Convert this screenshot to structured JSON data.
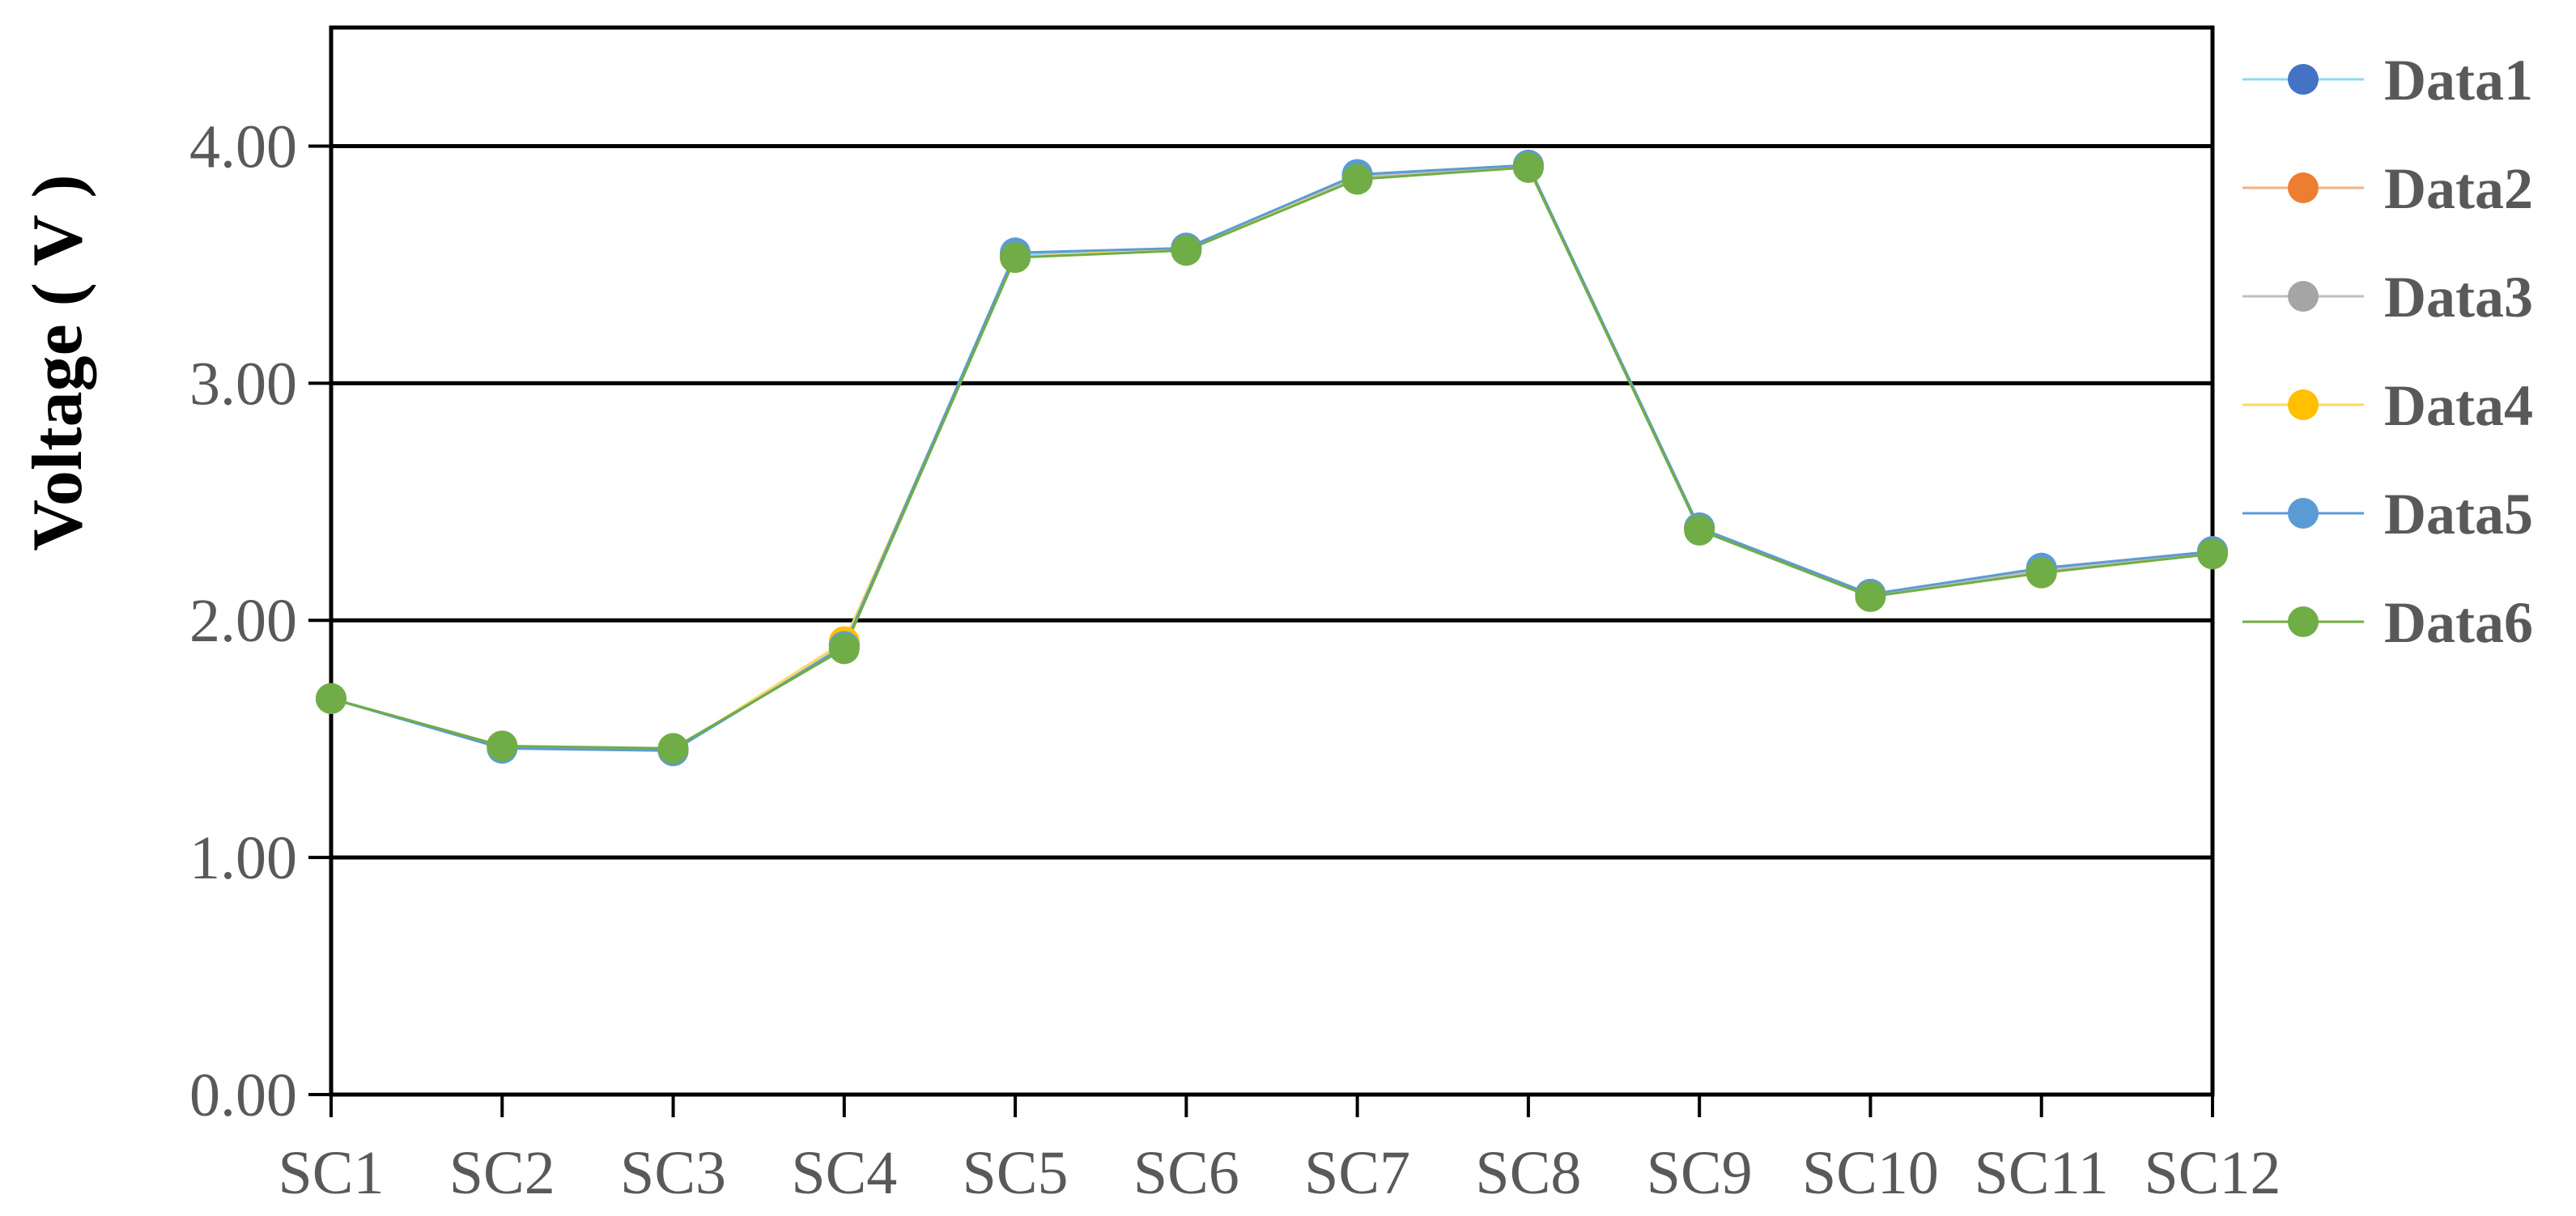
{
  "chart_data": {
    "type": "line",
    "title": "",
    "xlabel": "",
    "ylabel": "Voltage ( V )",
    "ylim": [
      0,
      4.5
    ],
    "yticks": [
      "0.00",
      "1.00",
      "2.00",
      "3.00",
      "4.00"
    ],
    "ytick_values": [
      0,
      1,
      2,
      3,
      4
    ],
    "grid": "horizontal",
    "legend_position": "right",
    "categories": [
      "SC1",
      "SC2",
      "SC3",
      "SC4",
      "SC5",
      "SC6",
      "SC7",
      "SC8",
      "SC9",
      "SC10",
      "SC11",
      "SC12"
    ],
    "series": [
      {
        "name": "Data1",
        "line_color": "#8FD8F0",
        "marker_color": "#4472C4",
        "values": [
          1.67,
          1.47,
          1.45,
          1.89,
          3.54,
          3.57,
          3.88,
          3.92,
          2.39,
          2.11,
          2.22,
          2.29
        ]
      },
      {
        "name": "Data2",
        "line_color": "#F4B183",
        "marker_color": "#ED7D31",
        "values": [
          1.67,
          1.47,
          1.45,
          1.9,
          3.53,
          3.57,
          3.87,
          3.92,
          2.39,
          2.11,
          2.21,
          2.29
        ]
      },
      {
        "name": "Data3",
        "line_color": "#BFBFBF",
        "marker_color": "#A5A5A5",
        "values": [
          1.67,
          1.47,
          1.45,
          1.9,
          3.53,
          3.57,
          3.87,
          3.91,
          2.39,
          2.11,
          2.21,
          2.29
        ]
      },
      {
        "name": "Data4",
        "line_color": "#FFD966",
        "marker_color": "#FFC000",
        "values": [
          1.67,
          1.47,
          1.45,
          1.91,
          3.53,
          3.57,
          3.86,
          3.91,
          2.39,
          2.1,
          2.2,
          2.28
        ]
      },
      {
        "name": "Data5",
        "line_color": "#5B9BD5",
        "marker_color": "#5B9BD5",
        "values": [
          1.67,
          1.46,
          1.45,
          1.89,
          3.55,
          3.57,
          3.88,
          3.92,
          2.39,
          2.11,
          2.22,
          2.29
        ]
      },
      {
        "name": "Data6",
        "line_color": "#70AD47",
        "marker_color": "#70AD47",
        "values": [
          1.67,
          1.47,
          1.46,
          1.88,
          3.53,
          3.56,
          3.86,
          3.91,
          2.38,
          2.1,
          2.2,
          2.28
        ]
      }
    ]
  }
}
